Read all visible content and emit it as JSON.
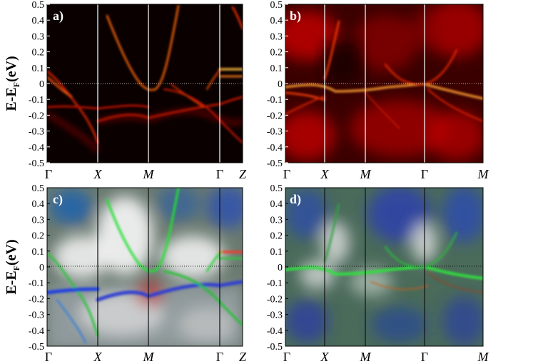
{
  "chart_data": [
    {
      "type": "heatmap",
      "panel_label": "a)",
      "ylabel": "E-E",
      "ylabel_sub": "F",
      "ylabel_unit": "(eV)",
      "ylim": [
        -0.5,
        0.5
      ],
      "yticks": [
        "0.5",
        "0.4",
        "0.3",
        "0.2",
        "0.1",
        "0",
        "-0.1",
        "-0.2",
        "-0.3",
        "-0.4",
        "-0.5"
      ],
      "kpath": [
        {
          "label": "Γ",
          "italic": false
        },
        {
          "label": "X",
          "italic": true
        },
        {
          "label": "M",
          "italic": true
        },
        {
          "label": "Γ",
          "italic": false
        },
        {
          "label": "Z",
          "italic": true
        }
      ],
      "colormap": "black-red-yellow"
    },
    {
      "type": "heatmap",
      "panel_label": "b)",
      "ylim": [
        -0.5,
        0.5
      ],
      "yticks": [
        "0.5",
        "0.4",
        "0.3",
        "0.2",
        "0.1",
        "0",
        "-0.1",
        "-0.2",
        "-0.3",
        "-0.4",
        "-0.5"
      ],
      "kpath": [
        {
          "label": "Γ",
          "italic": false
        },
        {
          "label": "X",
          "italic": true
        },
        {
          "label": "M",
          "italic": true
        },
        {
          "label": "Γ",
          "italic": false
        },
        {
          "label": "M",
          "italic": true
        }
      ],
      "colormap": "black-red-yellow"
    },
    {
      "type": "heatmap",
      "panel_label": "c)",
      "ylabel": "E-E",
      "ylabel_sub": "F",
      "ylabel_unit": "(eV)",
      "ylim": [
        -0.5,
        0.5
      ],
      "yticks": [
        "0.5",
        "0.4",
        "0.3",
        "0.2",
        "0.1",
        "0",
        "-0.1",
        "-0.2",
        "-0.3",
        "-0.4",
        "-0.5"
      ],
      "kpath": [
        {
          "label": "Γ",
          "italic": false
        },
        {
          "label": "X",
          "italic": true
        },
        {
          "label": "M",
          "italic": true
        },
        {
          "label": "Γ",
          "italic": false
        },
        {
          "label": "Z",
          "italic": true
        }
      ],
      "colormap": "orbital-rgb"
    },
    {
      "type": "heatmap",
      "panel_label": "d)",
      "ylim": [
        -0.5,
        0.5
      ],
      "yticks": [
        "0.5",
        "0.4",
        "0.3",
        "0.2",
        "0.1",
        "0",
        "-0.1",
        "-0.2",
        "-0.3",
        "-0.4",
        "-0.5"
      ],
      "kpath": [
        {
          "label": "Γ",
          "italic": false
        },
        {
          "label": "X",
          "italic": true
        },
        {
          "label": "M",
          "italic": true
        },
        {
          "label": "Γ",
          "italic": false
        },
        {
          "label": "M",
          "italic": true
        }
      ],
      "colormap": "orbital-rgb"
    }
  ]
}
